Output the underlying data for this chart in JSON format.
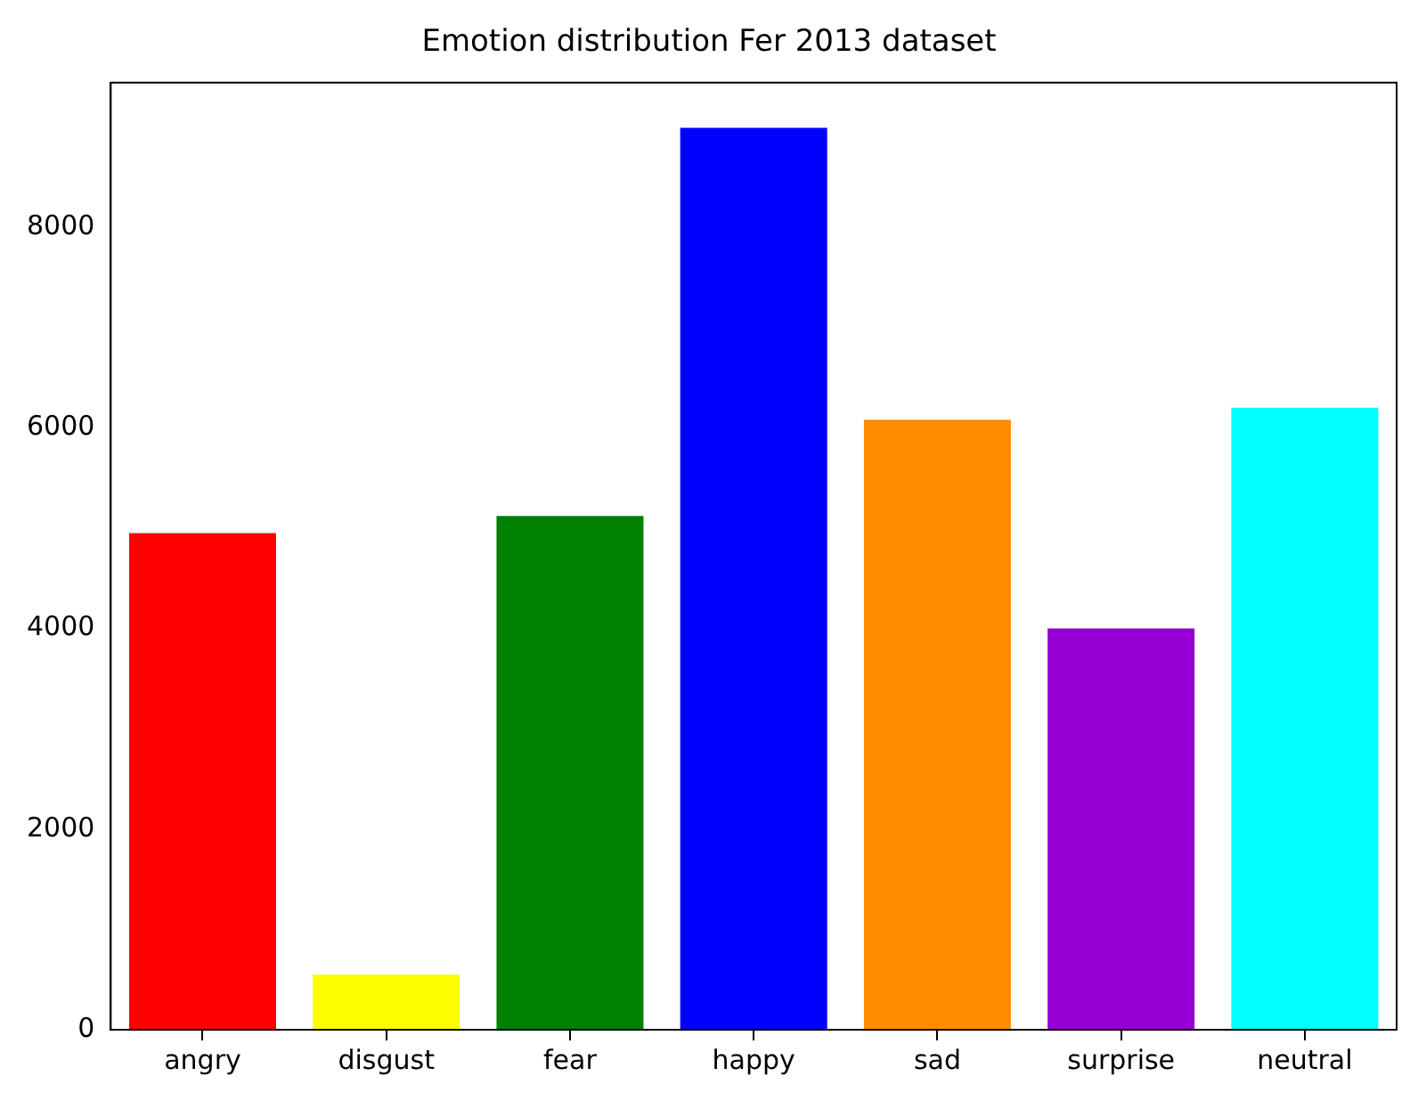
{
  "chart_data": {
    "type": "bar",
    "title": "Emotion distribution Fer 2013 dataset",
    "categories": [
      "angry",
      "disgust",
      "fear",
      "happy",
      "sad",
      "surprise",
      "neutral"
    ],
    "values": [
      4950,
      550,
      5120,
      8990,
      6080,
      4000,
      6200
    ],
    "colors": [
      "#ff0000",
      "#ffff00",
      "#008000",
      "#0000ff",
      "#ff8c00",
      "#9400d3",
      "#00ffff"
    ],
    "ylim": [
      0,
      9440
    ],
    "yticks": [
      0,
      2000,
      4000,
      6000,
      8000
    ],
    "grid": false,
    "legend": false
  }
}
